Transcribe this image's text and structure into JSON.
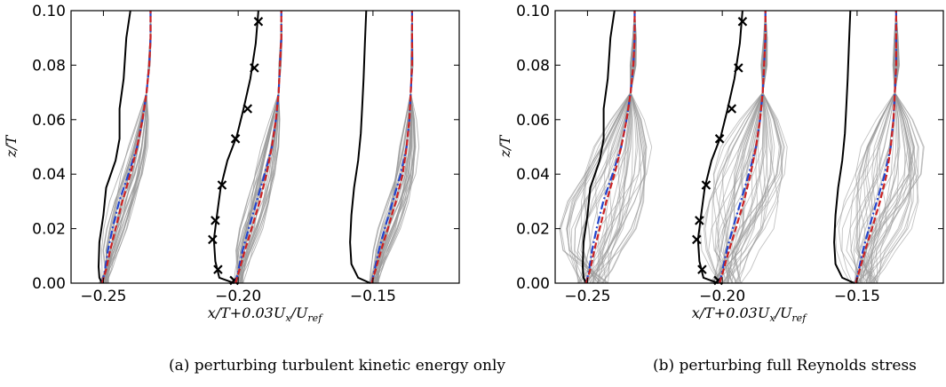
{
  "chart_data": [
    {
      "type": "line",
      "caption": "(a) perturbing turbulent kinetic energy only",
      "xlabel": "x/T+0.03U_x/U_ref",
      "ylabel": "z/T",
      "xlim": [
        -0.262,
        -0.118
      ],
      "ylim": [
        0.0,
        0.1
      ],
      "xticks": [
        "−0.25",
        "−0.20",
        "−0.15"
      ],
      "xtick_values": [
        -0.25,
        -0.2,
        -0.15
      ],
      "yticks": [
        "0.00",
        "0.02",
        "0.04",
        "0.06",
        "0.08",
        "0.10"
      ],
      "ytick_values": [
        0.0,
        0.02,
        0.04,
        0.06,
        0.08,
        0.1
      ],
      "grid": false,
      "ensemble_spread": "narrow",
      "colors": {
        "samples": "#9a9a9a",
        "baseline": "#000000",
        "mean": "#cc2222",
        "truth": "#2244cc"
      },
      "profiles": [
        {
          "station": 1,
          "baseline": {
            "x": [
              -0.2505,
              -0.2515,
              -0.2518,
              -0.2515,
              -0.25,
              -0.249,
              -0.2455,
              -0.244,
              -0.244,
              -0.2425,
              -0.2415,
              -0.24
            ],
            "z": [
              0.0,
              0.002,
              0.006,
              0.015,
              0.025,
              0.035,
              0.045,
              0.053,
              0.064,
              0.075,
              0.09,
              0.1
            ]
          },
          "mean": {
            "x": [
              -0.2505,
              -0.249,
              -0.2475,
              -0.2455,
              -0.243,
              -0.24,
              -0.2375,
              -0.2355,
              -0.234,
              -0.233,
              -0.2325,
              -0.2325
            ],
            "z": [
              0.0,
              0.005,
              0.012,
              0.02,
              0.03,
              0.04,
              0.05,
              0.06,
              0.07,
              0.08,
              0.09,
              0.1
            ]
          }
        },
        {
          "station": 2,
          "baseline": {
            "x": [
              -0.2015,
              -0.207,
              -0.2085,
              -0.209,
              -0.208,
              -0.2065,
              -0.204,
              -0.2005,
              -0.198,
              -0.1955,
              -0.1935,
              -0.1925
            ],
            "z": [
              0.0,
              0.002,
              0.008,
              0.016,
              0.024,
              0.035,
              0.045,
              0.054,
              0.064,
              0.075,
              0.088,
              0.1
            ]
          },
          "markers": {
            "x": [
              -0.2015,
              -0.2075,
              -0.2095,
              -0.2085,
              -0.206,
              -0.201,
              -0.1965,
              -0.194,
              -0.1925
            ],
            "z": [
              0.001,
              0.005,
              0.016,
              0.023,
              0.036,
              0.053,
              0.064,
              0.079,
              0.096
            ]
          },
          "mean": {
            "x": [
              -0.201,
              -0.1995,
              -0.1975,
              -0.195,
              -0.192,
              -0.1895,
              -0.1875,
              -0.186,
              -0.185,
              -0.1845,
              -0.184,
              -0.184
            ],
            "z": [
              0.0,
              0.005,
              0.012,
              0.02,
              0.03,
              0.04,
              0.05,
              0.06,
              0.07,
              0.08,
              0.09,
              0.1
            ]
          }
        },
        {
          "station": 3,
          "baseline": {
            "x": [
              -0.151,
              -0.1555,
              -0.158,
              -0.1585,
              -0.158,
              -0.157,
              -0.1555,
              -0.1545,
              -0.154,
              -0.1535,
              -0.153,
              -0.1525
            ],
            "z": [
              0.0,
              0.002,
              0.007,
              0.015,
              0.025,
              0.035,
              0.045,
              0.055,
              0.065,
              0.075,
              0.088,
              0.1
            ]
          },
          "mean": {
            "x": [
              -0.1505,
              -0.149,
              -0.147,
              -0.1445,
              -0.1415,
              -0.139,
              -0.1375,
              -0.1365,
              -0.136,
              -0.1355,
              -0.1355,
              -0.1355
            ],
            "z": [
              0.0,
              0.005,
              0.012,
              0.02,
              0.03,
              0.04,
              0.05,
              0.06,
              0.07,
              0.08,
              0.09,
              0.1
            ]
          }
        }
      ]
    },
    {
      "type": "line",
      "caption": "(b) perturbing full Reynolds stress",
      "xlabel": "x/T+0.03U_x/U_ref",
      "ylabel": "z/T",
      "xlim": [
        -0.262,
        -0.118
      ],
      "ylim": [
        0.0,
        0.1
      ],
      "xticks": [
        "−0.25",
        "−0.20",
        "−0.15"
      ],
      "xtick_values": [
        -0.25,
        -0.2,
        -0.15
      ],
      "yticks": [
        "0.00",
        "0.02",
        "0.04",
        "0.06",
        "0.08",
        "0.10"
      ],
      "ytick_values": [
        0.0,
        0.02,
        0.04,
        0.06,
        0.08,
        0.1
      ],
      "grid": false,
      "ensemble_spread": "wide",
      "colors": {
        "samples": "#9a9a9a",
        "baseline": "#000000",
        "mean": "#cc2222",
        "truth": "#2244cc"
      },
      "profiles": [
        {
          "station": 1,
          "baseline": {
            "x": [
              -0.2505,
              -0.2515,
              -0.2518,
              -0.2515,
              -0.25,
              -0.249,
              -0.2455,
              -0.244,
              -0.244,
              -0.2425,
              -0.2415,
              -0.24
            ],
            "z": [
              0.0,
              0.002,
              0.006,
              0.015,
              0.025,
              0.035,
              0.045,
              0.053,
              0.064,
              0.075,
              0.09,
              0.1
            ]
          },
          "mean": {
            "x": [
              -0.2505,
              -0.249,
              -0.2475,
              -0.2455,
              -0.243,
              -0.24,
              -0.2375,
              -0.2355,
              -0.234,
              -0.233,
              -0.2325,
              -0.2325
            ],
            "z": [
              0.0,
              0.005,
              0.012,
              0.02,
              0.03,
              0.04,
              0.05,
              0.06,
              0.07,
              0.08,
              0.09,
              0.1
            ]
          }
        },
        {
          "station": 2,
          "baseline": {
            "x": [
              -0.2015,
              -0.207,
              -0.2085,
              -0.209,
              -0.208,
              -0.2065,
              -0.204,
              -0.2005,
              -0.198,
              -0.1955,
              -0.1935,
              -0.1925
            ],
            "z": [
              0.0,
              0.002,
              0.008,
              0.016,
              0.024,
              0.035,
              0.045,
              0.054,
              0.064,
              0.075,
              0.088,
              0.1
            ]
          },
          "markers": {
            "x": [
              -0.2015,
              -0.2075,
              -0.2095,
              -0.2085,
              -0.206,
              -0.201,
              -0.1965,
              -0.194,
              -0.1925
            ],
            "z": [
              0.001,
              0.005,
              0.016,
              0.023,
              0.036,
              0.053,
              0.064,
              0.079,
              0.096
            ]
          },
          "mean": {
            "x": [
              -0.201,
              -0.1995,
              -0.1975,
              -0.195,
              -0.192,
              -0.1895,
              -0.1875,
              -0.186,
              -0.185,
              -0.1845,
              -0.184,
              -0.184
            ],
            "z": [
              0.0,
              0.005,
              0.012,
              0.02,
              0.03,
              0.04,
              0.05,
              0.06,
              0.07,
              0.08,
              0.09,
              0.1
            ]
          }
        },
        {
          "station": 3,
          "baseline": {
            "x": [
              -0.151,
              -0.1555,
              -0.158,
              -0.1585,
              -0.158,
              -0.157,
              -0.1555,
              -0.1545,
              -0.154,
              -0.1535,
              -0.153,
              -0.1525
            ],
            "z": [
              0.0,
              0.002,
              0.007,
              0.015,
              0.025,
              0.035,
              0.045,
              0.055,
              0.065,
              0.075,
              0.088,
              0.1
            ]
          },
          "mean": {
            "x": [
              -0.1505,
              -0.149,
              -0.147,
              -0.1445,
              -0.1415,
              -0.139,
              -0.1375,
              -0.1365,
              -0.136,
              -0.1355,
              -0.1355,
              -0.1355
            ],
            "z": [
              0.0,
              0.005,
              0.012,
              0.02,
              0.03,
              0.04,
              0.05,
              0.06,
              0.07,
              0.08,
              0.09,
              0.1
            ]
          }
        }
      ]
    }
  ]
}
